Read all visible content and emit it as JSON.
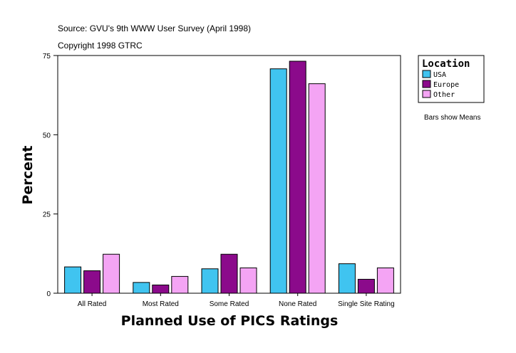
{
  "header": {
    "source": "Source: GVU's 9th WWW User Survey (April 1998)",
    "copyright": "Copyright 1998 GTRC"
  },
  "legend": {
    "title": "Location"
  },
  "note": "Bars show Means",
  "colors": {
    "USA": "#40c4f0",
    "Europe": "#8b0a8b",
    "Other": "#f4a4f4"
  },
  "chart_data": {
    "type": "bar",
    "title": "",
    "xlabel": "Planned Use of PICS Ratings",
    "ylabel": "Percent",
    "ylim": [
      0,
      75
    ],
    "yticks": [
      0,
      25,
      50,
      75
    ],
    "categories": [
      "All Rated",
      "Most Rated",
      "Some Rated",
      "None Rated",
      "Single Site Rating"
    ],
    "series": [
      {
        "name": "USA",
        "values": [
          8.3,
          3.4,
          7.7,
          70.8,
          9.3
        ]
      },
      {
        "name": "Europe",
        "values": [
          7.1,
          2.6,
          12.3,
          73.2,
          4.4
        ]
      },
      {
        "name": "Other",
        "values": [
          12.3,
          5.3,
          8.0,
          66.1,
          8.0
        ]
      }
    ],
    "legend_position": "top-right"
  }
}
